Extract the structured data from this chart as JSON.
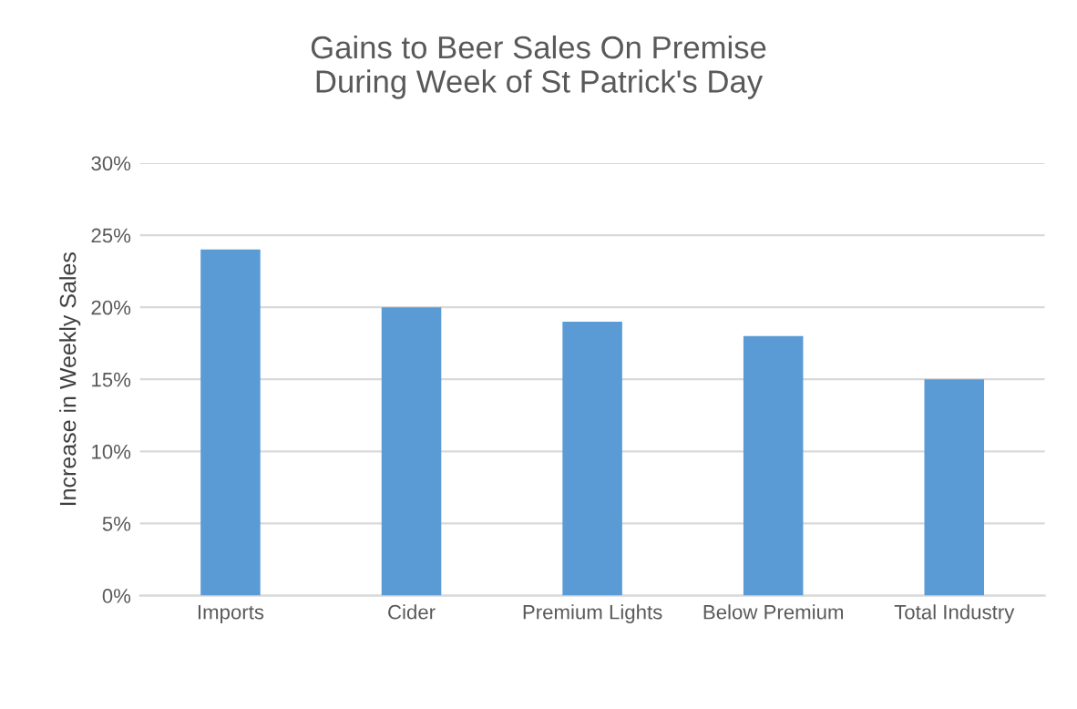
{
  "chart_data": {
    "type": "bar",
    "title": "Gains to Beer Sales On Premise\nDuring Week of St Patrick's Day",
    "ylabel": "Increase in Weekly Sales",
    "categories": [
      "Imports",
      "Cider",
      "Premium Lights",
      "Below Premium",
      "Total Industry"
    ],
    "values": [
      24,
      20,
      19,
      18,
      15
    ],
    "color": "#5b9bd5",
    "ylim": [
      0,
      30
    ],
    "yticks": [
      {
        "value": 0,
        "label": "0%"
      },
      {
        "value": 5,
        "label": "5%"
      },
      {
        "value": 10,
        "label": "10%"
      },
      {
        "value": 15,
        "label": "15%"
      },
      {
        "value": 20,
        "label": "20%"
      },
      {
        "value": 25,
        "label": "25%"
      },
      {
        "value": 30,
        "label": "30%"
      }
    ],
    "grid": "y"
  }
}
